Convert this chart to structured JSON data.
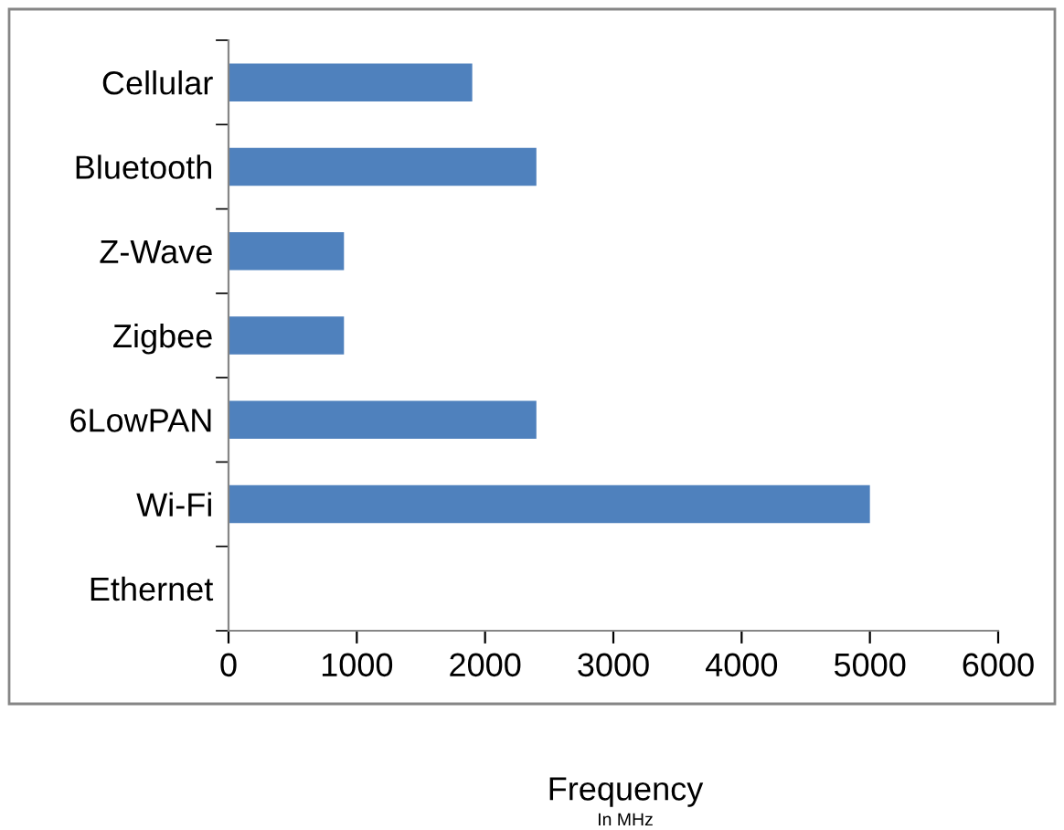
{
  "chart_data": {
    "type": "bar",
    "orientation": "horizontal",
    "xlabel": "Frequency",
    "annotations": [
      "In MHz"
    ],
    "categories": [
      "Cellular",
      "Bluetooth",
      "Z-Wave",
      "Zigbee",
      "6LowPAN",
      "Wi-Fi",
      "Ethernet"
    ],
    "values": [
      1900,
      2400,
      900,
      900,
      2400,
      5000,
      0
    ],
    "color": "#4f81bd",
    "xlim": [
      0,
      6000
    ],
    "xticks": [
      0,
      1000,
      2000,
      3000,
      4000,
      5000,
      6000
    ],
    "grid": false,
    "legend": false
  }
}
